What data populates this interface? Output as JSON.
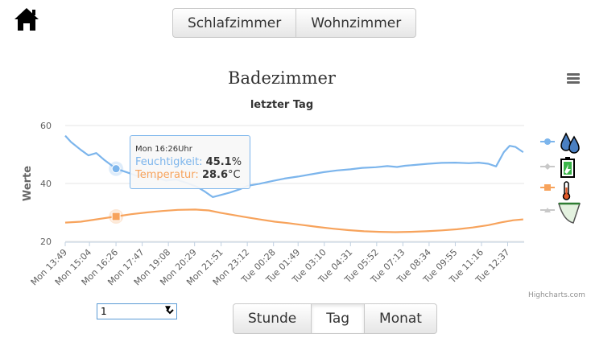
{
  "rooms": [
    "Schlafzimmer",
    "Wohnzimmer"
  ],
  "ranges": [
    {
      "label": "Stunde",
      "active": false
    },
    {
      "label": "Tag",
      "active": true
    },
    {
      "label": "Monat",
      "active": false
    }
  ],
  "select_value": "1",
  "credits": "Highcharts.com",
  "tooltip": {
    "header": "Mon 16:26Uhr",
    "humidity_label": "Feuchtigkeit",
    "humidity_value": "45.1",
    "humidity_unit": "%",
    "temp_label": "Temperatur",
    "temp_value": "28.6",
    "temp_unit": "°C"
  },
  "colors": {
    "humidity": "#7cb5ec",
    "temperature": "#f7a35c",
    "battery": "#c8c8c8",
    "grid": "#e6e6e6"
  },
  "chart_data": {
    "type": "line",
    "title": "Badezimmer",
    "subtitle": "letzter Tag",
    "ylabel": "Werte",
    "ylim": [
      20,
      60
    ],
    "yticks": [
      20,
      40,
      60
    ],
    "xlim": [
      0,
      23.65
    ],
    "xticks": [
      {
        "x": 0,
        "label": "Mon 13:49"
      },
      {
        "x": 1.25,
        "label": "Mon 15:04"
      },
      {
        "x": 2.617,
        "label": "Mon 16:26"
      },
      {
        "x": 3.967,
        "label": "Mon 17:47"
      },
      {
        "x": 5.317,
        "label": "Mon 19:08"
      },
      {
        "x": 6.667,
        "label": "Mon 20:29"
      },
      {
        "x": 8.033,
        "label": "Mon 21:51"
      },
      {
        "x": 9.383,
        "label": "Mon 23:12"
      },
      {
        "x": 10.733,
        "label": "Tue 00:28"
      },
      {
        "x": 12.0,
        "label": "Tue 01:49"
      },
      {
        "x": 13.35,
        "label": "Tue 03:10"
      },
      {
        "x": 14.7,
        "label": "Tue 04:31"
      },
      {
        "x": 16.05,
        "label": "Tue 05:52"
      },
      {
        "x": 17.4,
        "label": "Tue 07:13"
      },
      {
        "x": 18.75,
        "label": "Tue 08:34"
      },
      {
        "x": 20.1,
        "label": "Tue 09:55"
      },
      {
        "x": 21.45,
        "label": "Tue 11:16"
      },
      {
        "x": 22.8,
        "label": "Tue 12:37"
      }
    ],
    "legend_position": "right",
    "legend_icons": [
      "humidity-drops-icon",
      "battery-icon",
      "thermometer-icon",
      "funnel-icon"
    ],
    "series": [
      {
        "name": "Feuchtigkeit",
        "color": "#7cb5ec",
        "x": [
          0,
          0.3,
          0.8,
          1.2,
          1.6,
          2.0,
          2.62,
          3.2,
          3.7,
          4.2,
          4.8,
          5.2,
          5.7,
          6.3,
          6.8,
          7.2,
          7.6,
          8.0,
          8.5,
          9.0,
          9.4,
          10.0,
          10.7,
          11.3,
          12.0,
          12.7,
          13.3,
          14.0,
          14.7,
          15.3,
          16.0,
          16.6,
          17.1,
          17.5,
          18.0,
          18.7,
          19.4,
          20.1,
          20.8,
          21.3,
          21.8,
          22.2,
          22.6,
          22.9,
          23.2,
          23.6
        ],
        "y": [
          56.5,
          54.3,
          51.6,
          49.7,
          50.5,
          48.2,
          45.1,
          43.8,
          42.6,
          43.0,
          41.8,
          41.0,
          41.4,
          40.1,
          38.8,
          37.2,
          35.3,
          36.0,
          36.9,
          38.0,
          39.2,
          39.9,
          40.9,
          41.7,
          42.4,
          43.2,
          43.9,
          44.5,
          44.9,
          45.4,
          45.6,
          46.0,
          45.7,
          46.1,
          46.4,
          46.8,
          47.1,
          47.2,
          47.0,
          47.2,
          46.8,
          45.9,
          50.8,
          53.0,
          52.6,
          50.8
        ]
      },
      {
        "name": "Temperatur",
        "color": "#f7a35c",
        "x": [
          0,
          0.8,
          1.6,
          2.62,
          3.4,
          4.2,
          5.0,
          5.8,
          6.7,
          7.4,
          8.0,
          8.6,
          9.2,
          10.0,
          10.8,
          11.5,
          12.3,
          13.0,
          13.8,
          14.6,
          15.4,
          16.2,
          17.0,
          17.8,
          18.6,
          19.4,
          20.2,
          21.0,
          21.8,
          22.5,
          23.1,
          23.6
        ],
        "y": [
          26.5,
          26.8,
          27.6,
          28.6,
          29.4,
          30.0,
          30.5,
          30.9,
          31.0,
          30.7,
          29.9,
          29.2,
          28.5,
          27.6,
          26.8,
          26.3,
          25.6,
          25.0,
          24.4,
          23.9,
          23.5,
          23.3,
          23.2,
          23.3,
          23.5,
          23.8,
          24.2,
          24.8,
          25.6,
          26.6,
          27.3,
          27.6
        ]
      }
    ]
  }
}
